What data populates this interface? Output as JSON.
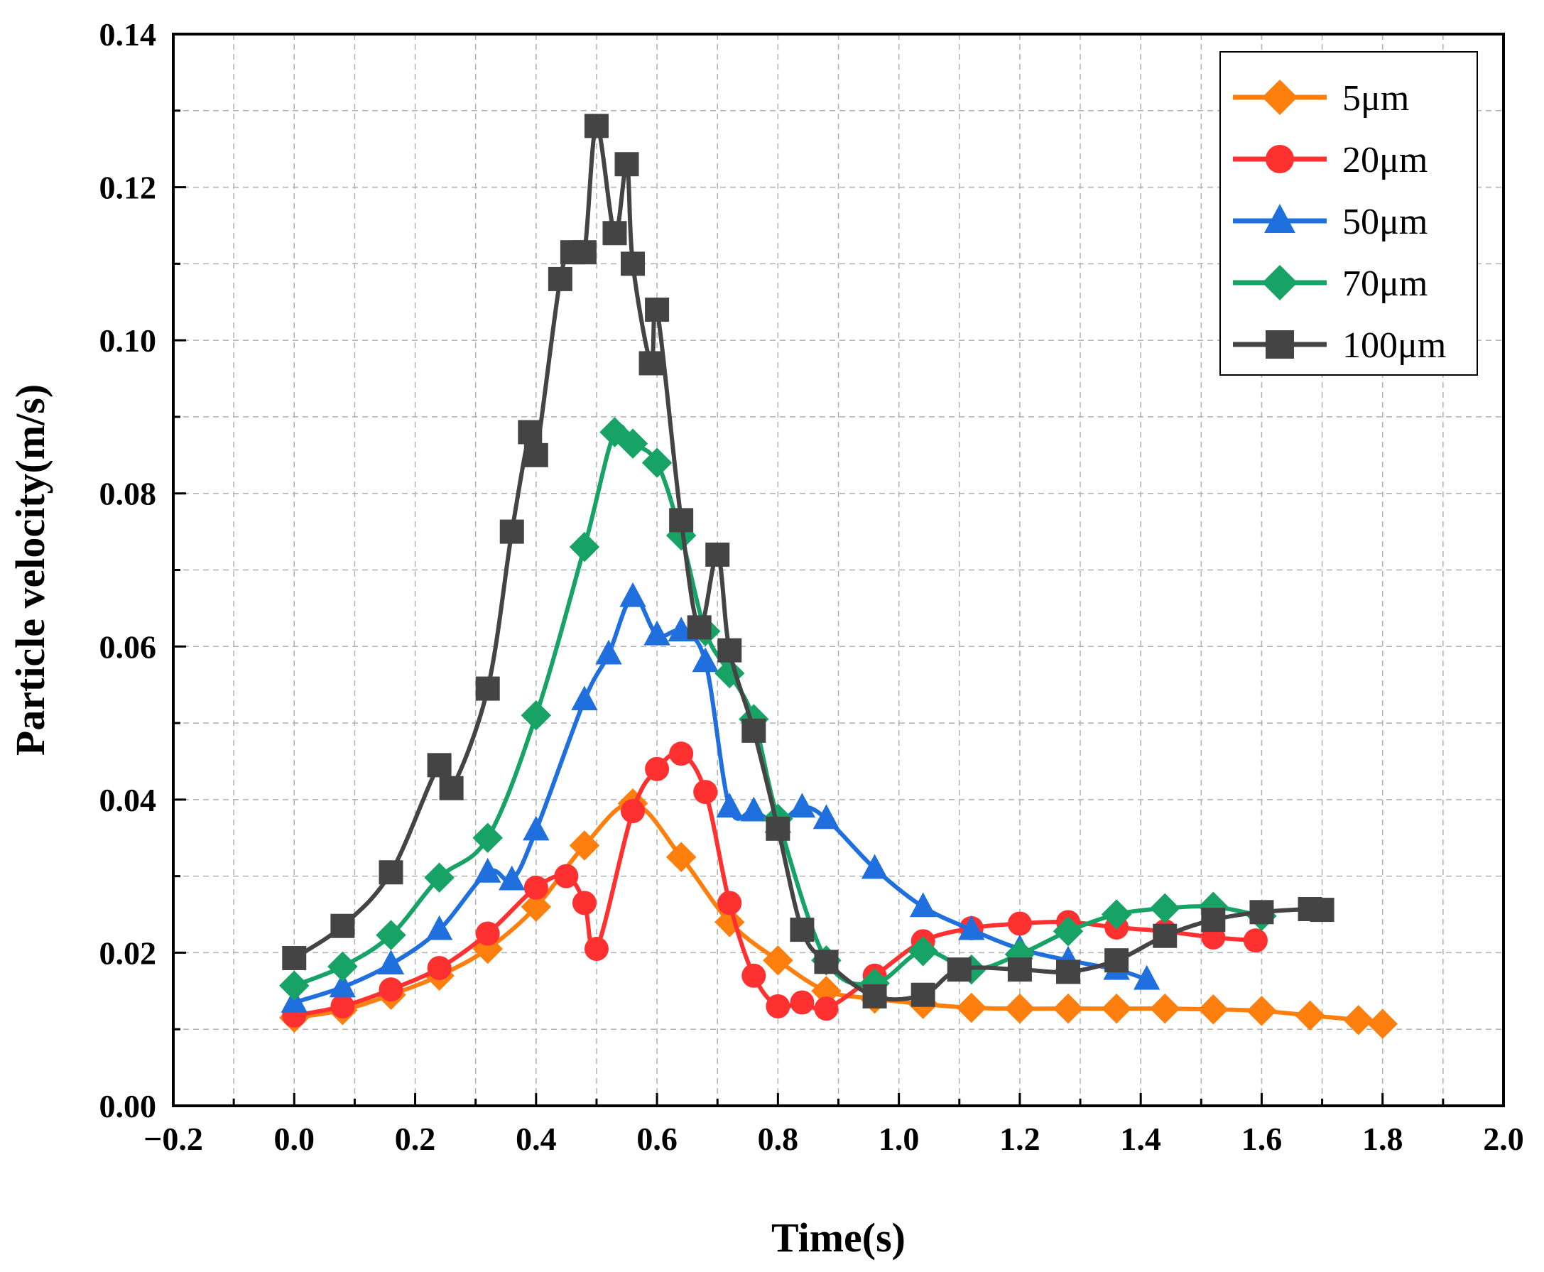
{
  "chart_data": {
    "type": "line",
    "title": "",
    "xlabel": "Time(s)",
    "ylabel": "Particle velocity(m/s)",
    "xlim": [
      -0.2,
      2.0
    ],
    "ylim": [
      0.0,
      0.14
    ],
    "x_ticks": [
      "−0.2",
      "0.0",
      "0.2",
      "0.4",
      "0.6",
      "0.8",
      "1.0",
      "1.2",
      "1.4",
      "1.6",
      "1.8",
      "2.0"
    ],
    "y_ticks": [
      "0.00",
      "0.02",
      "0.04",
      "0.06",
      "0.08",
      "0.10",
      "0.12",
      "0.14"
    ],
    "grid": true,
    "legend_position": "top-right",
    "series": [
      {
        "name": "5μm",
        "color": "#ff7f0e",
        "marker": "diamond",
        "x": [
          0.0,
          0.08,
          0.16,
          0.24,
          0.32,
          0.4,
          0.48,
          0.56,
          0.64,
          0.72,
          0.8,
          0.88,
          0.96,
          1.04,
          1.12,
          1.2,
          1.28,
          1.36,
          1.44,
          1.52,
          1.6,
          1.68,
          1.76,
          1.8
        ],
        "y": [
          0.0115,
          0.0125,
          0.0145,
          0.017,
          0.0205,
          0.026,
          0.034,
          0.0395,
          0.0325,
          0.024,
          0.019,
          0.015,
          0.014,
          0.0133,
          0.0128,
          0.0127,
          0.0127,
          0.0127,
          0.0127,
          0.0126,
          0.0124,
          0.0118,
          0.0112,
          0.0107
        ]
      },
      {
        "name": "20μm",
        "color": "#ff3030",
        "marker": "circle",
        "x": [
          0.0,
          0.08,
          0.16,
          0.24,
          0.32,
          0.4,
          0.45,
          0.48,
          0.5,
          0.56,
          0.6,
          0.64,
          0.68,
          0.72,
          0.76,
          0.8,
          0.84,
          0.88,
          0.96,
          1.04,
          1.12,
          1.2,
          1.28,
          1.36,
          1.44,
          1.52,
          1.59
        ],
        "y": [
          0.0118,
          0.013,
          0.0152,
          0.018,
          0.0225,
          0.0285,
          0.03,
          0.0265,
          0.0205,
          0.0385,
          0.044,
          0.046,
          0.041,
          0.0265,
          0.017,
          0.013,
          0.0135,
          0.0127,
          0.017,
          0.0215,
          0.0232,
          0.0238,
          0.024,
          0.0233,
          0.0228,
          0.022,
          0.0216
        ]
      },
      {
        "name": "50μm",
        "color": "#1f6fde",
        "marker": "triangle",
        "x": [
          0.0,
          0.08,
          0.16,
          0.24,
          0.32,
          0.36,
          0.4,
          0.48,
          0.52,
          0.56,
          0.6,
          0.64,
          0.68,
          0.72,
          0.76,
          0.8,
          0.84,
          0.88,
          0.96,
          1.04,
          1.12,
          1.2,
          1.28,
          1.36,
          1.41
        ],
        "y": [
          0.0135,
          0.0155,
          0.0185,
          0.023,
          0.0305,
          0.0295,
          0.036,
          0.053,
          0.059,
          0.0665,
          0.0615,
          0.062,
          0.058,
          0.039,
          0.0385,
          0.037,
          0.039,
          0.0375,
          0.031,
          0.026,
          0.023,
          0.0205,
          0.019,
          0.0178,
          0.0165
        ]
      },
      {
        "name": "70μm",
        "color": "#17a366",
        "marker": "diamond",
        "x": [
          0.0,
          0.08,
          0.16,
          0.24,
          0.32,
          0.4,
          0.48,
          0.53,
          0.56,
          0.6,
          0.64,
          0.68,
          0.72,
          0.76,
          0.8,
          0.88,
          0.96,
          1.04,
          1.12,
          1.2,
          1.28,
          1.36,
          1.44,
          1.52,
          1.6
        ],
        "y": [
          0.0157,
          0.0182,
          0.0223,
          0.0298,
          0.035,
          0.051,
          0.073,
          0.088,
          0.0865,
          0.084,
          0.0745,
          0.062,
          0.0565,
          0.0505,
          0.0375,
          0.019,
          0.016,
          0.0202,
          0.0178,
          0.0198,
          0.0228,
          0.025,
          0.0258,
          0.026,
          0.0248
        ]
      },
      {
        "name": "100μm",
        "color": "#444444",
        "marker": "square",
        "x": [
          0.0,
          0.08,
          0.16,
          0.24,
          0.26,
          0.32,
          0.36,
          0.39,
          0.4,
          0.44,
          0.46,
          0.48,
          0.5,
          0.53,
          0.55,
          0.56,
          0.59,
          0.6,
          0.64,
          0.67,
          0.7,
          0.72,
          0.76,
          0.8,
          0.84,
          0.88,
          0.96,
          1.04,
          1.1,
          1.2,
          1.28,
          1.36,
          1.44,
          1.52,
          1.6,
          1.68,
          1.7
        ],
        "y": [
          0.0193,
          0.0235,
          0.0305,
          0.0445,
          0.0415,
          0.0545,
          0.075,
          0.088,
          0.085,
          0.108,
          0.1115,
          0.1115,
          0.128,
          0.114,
          0.123,
          0.11,
          0.097,
          0.104,
          0.0765,
          0.0625,
          0.072,
          0.0595,
          0.049,
          0.0362,
          0.023,
          0.0188,
          0.0143,
          0.0145,
          0.0178,
          0.0178,
          0.0175,
          0.019,
          0.0222,
          0.0243,
          0.0253,
          0.0257,
          0.0256
        ]
      }
    ]
  }
}
